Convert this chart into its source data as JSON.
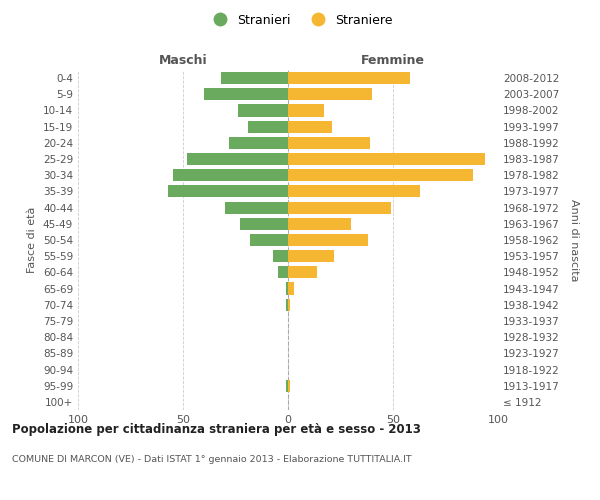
{
  "age_groups": [
    "100+",
    "95-99",
    "90-94",
    "85-89",
    "80-84",
    "75-79",
    "70-74",
    "65-69",
    "60-64",
    "55-59",
    "50-54",
    "45-49",
    "40-44",
    "35-39",
    "30-34",
    "25-29",
    "20-24",
    "15-19",
    "10-14",
    "5-9",
    "0-4"
  ],
  "birth_years": [
    "≤ 1912",
    "1913-1917",
    "1918-1922",
    "1923-1927",
    "1928-1932",
    "1933-1937",
    "1938-1942",
    "1943-1947",
    "1948-1952",
    "1953-1957",
    "1958-1962",
    "1963-1967",
    "1968-1972",
    "1973-1977",
    "1978-1982",
    "1983-1987",
    "1988-1992",
    "1993-1997",
    "1998-2002",
    "2003-2007",
    "2008-2012"
  ],
  "males": [
    0,
    1,
    0,
    0,
    0,
    0,
    1,
    1,
    5,
    7,
    18,
    23,
    30,
    57,
    55,
    48,
    28,
    19,
    24,
    40,
    32
  ],
  "females": [
    0,
    1,
    0,
    0,
    0,
    0,
    1,
    3,
    14,
    22,
    38,
    30,
    49,
    63,
    88,
    94,
    39,
    21,
    17,
    40,
    58
  ],
  "male_color": "#6aaa5f",
  "female_color": "#f5b731",
  "bar_height": 0.75,
  "title_main": "Popolazione per cittadinanza straniera per età e sesso - 2013",
  "title_sub": "COMUNE DI MARCON (VE) - Dati ISTAT 1° gennaio 2013 - Elaborazione TUTTITALIA.IT",
  "legend_male": "Stranieri",
  "legend_female": "Straniere",
  "ylabel_left": "Fasce di età",
  "ylabel_right": "Anni di nascita",
  "label_maschi": "Maschi",
  "label_femmine": "Femmine",
  "grid_color": "#cccccc",
  "background_color": "#ffffff",
  "text_color": "#555555"
}
